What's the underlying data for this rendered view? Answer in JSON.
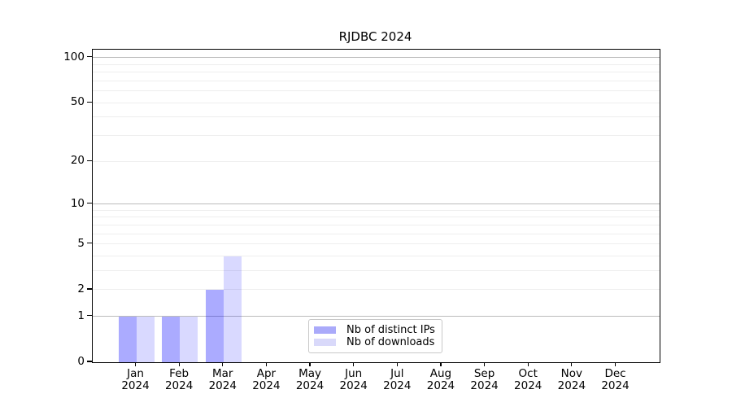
{
  "chart_data": {
    "type": "bar",
    "title": "RJDBC 2024",
    "categories": [
      "Jan",
      "Feb",
      "Mar",
      "Apr",
      "May",
      "Jun",
      "Jul",
      "Aug",
      "Sep",
      "Oct",
      "Nov",
      "Dec"
    ],
    "year_label": "2024",
    "series": [
      {
        "name": "Nb of distinct IPs",
        "color": "rgba(0,0,255,0.33)",
        "legend_color": "#aaaafa",
        "values": [
          1,
          1,
          2,
          0,
          0,
          0,
          0,
          0,
          0,
          0,
          0,
          0
        ]
      },
      {
        "name": "Nb of downloads",
        "color": "rgba(0,0,255,0.15)",
        "legend_color": "#d9d9fa",
        "values": [
          1,
          1,
          4,
          0,
          0,
          0,
          0,
          0,
          0,
          0,
          0,
          0
        ]
      }
    ],
    "y_axis": {
      "scale": "log1p",
      "ticks": [
        0,
        1,
        2,
        5,
        10,
        20,
        50,
        100
      ],
      "tick_labels": [
        "0",
        "1",
        "2",
        "5",
        "10",
        "20",
        "50",
        "100"
      ],
      "ylim": [
        0,
        113
      ]
    },
    "grid": {
      "major_values": [
        1,
        10,
        100
      ],
      "minor_values": [
        2,
        3,
        4,
        5,
        6,
        7,
        8,
        9,
        20,
        30,
        40,
        50,
        60,
        70,
        80,
        90
      ],
      "major_color": "#bbbbbb",
      "minor_color": "#eeeeee"
    },
    "legend": {
      "position": "lower center"
    },
    "axis_color": "#000000",
    "background": "#ffffff"
  }
}
